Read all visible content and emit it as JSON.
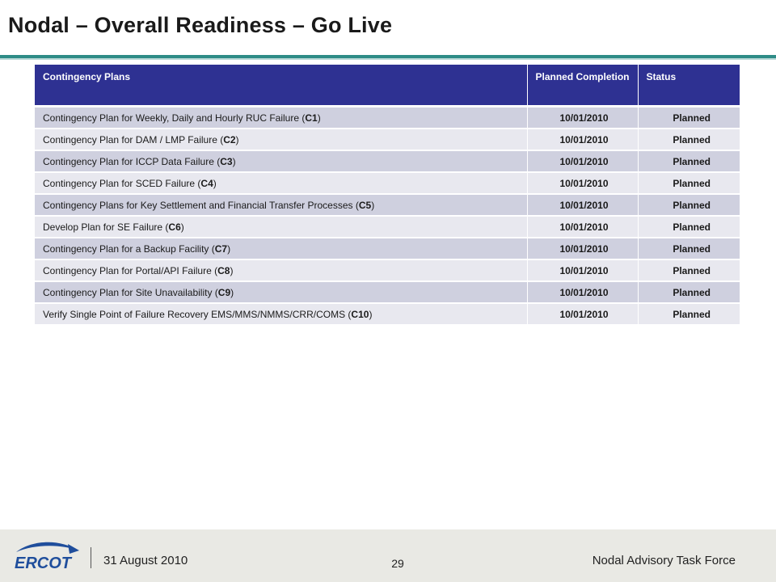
{
  "slide": {
    "title": "Nodal – Overall Readiness – Go Live"
  },
  "table": {
    "headers": [
      "Contingency Plans",
      "Planned Completion",
      "Status"
    ],
    "rows": [
      {
        "plan": "Contingency Plan for Weekly, Daily and Hourly RUC Failure (",
        "code": "C1",
        "tail": ")",
        "date": "10/01/2010",
        "status": "Planned"
      },
      {
        "plan": "Contingency Plan for DAM / LMP Failure (",
        "code": "C2",
        "tail": ")",
        "date": "10/01/2010",
        "status": "Planned"
      },
      {
        "plan": "Contingency Plan for ICCP Data Failure (",
        "code": "C3",
        "tail": ")",
        "date": "10/01/2010",
        "status": "Planned"
      },
      {
        "plan": "Contingency Plan for SCED Failure (",
        "code": "C4",
        "tail": ")",
        "date": "10/01/2010",
        "status": "Planned"
      },
      {
        "plan": "Contingency Plans for Key Settlement and Financial Transfer Processes (",
        "code": "C5",
        "tail": ")",
        "date": "10/01/2010",
        "status": "Planned"
      },
      {
        "plan": "Develop Plan for SE Failure (",
        "code": "C6",
        "tail": ")",
        "date": "10/01/2010",
        "status": "Planned"
      },
      {
        "plan": "Contingency Plan for a Backup Facility (",
        "code": "C7",
        "tail": ")",
        "date": "10/01/2010",
        "status": "Planned"
      },
      {
        "plan": "Contingency Plan for Portal/API Failure (",
        "code": "C8",
        "tail": ")",
        "date": "10/01/2010",
        "status": "Planned"
      },
      {
        "plan": "Contingency Plan for Site Unavailability (",
        "code": "C9",
        "tail": ")",
        "date": "10/01/2010",
        "status": "Planned"
      },
      {
        "plan": "Verify Single Point of Failure Recovery EMS/MMS/NMMS/CRR/COMS (",
        "code": "C10",
        "tail": ")",
        "date": "10/01/2010",
        "status": "Planned"
      }
    ]
  },
  "footer": {
    "logo_text": "ERCOT",
    "date": "31 August 2010",
    "page_number": "29",
    "organization": "Nodal Advisory Task Force"
  },
  "colors": {
    "header_bg": "#2e3192",
    "row_odd": "#cfd0df",
    "row_even": "#e8e8ef",
    "title_rule": "#2e8c87",
    "logo_blue": "#1f4e9c"
  }
}
